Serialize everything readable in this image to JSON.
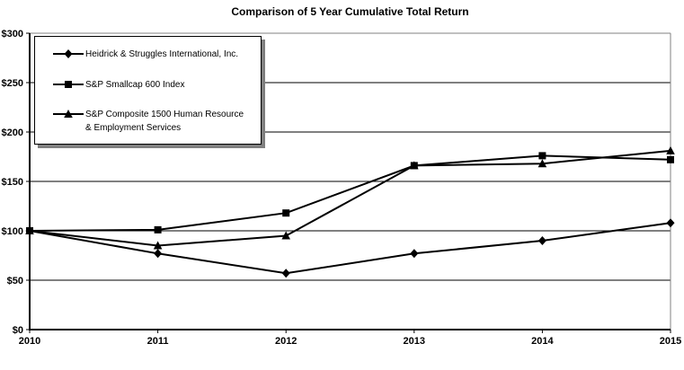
{
  "chart_data": {
    "type": "line",
    "title": "Comparison of 5 Year Cumulative Total Return",
    "xlabel": "",
    "ylabel": "",
    "x": [
      "2010",
      "2011",
      "2012",
      "2013",
      "2014",
      "2015"
    ],
    "ylim": [
      0,
      300
    ],
    "yticks": [
      {
        "label": "$0",
        "value": 0
      },
      {
        "label": "$50",
        "value": 50
      },
      {
        "label": "$100",
        "value": 100
      },
      {
        "label": "$150",
        "value": 150
      },
      {
        "label": "$200",
        "value": 200
      },
      {
        "label": "$250",
        "value": 250
      },
      {
        "label": "$300",
        "value": 300
      }
    ],
    "grid": "horizontal",
    "legend_position": "top-left-inside",
    "series": [
      {
        "key": "hsii",
        "name": "Heidrick & Struggles International, Inc.",
        "marker": "diamond",
        "color": "#000000",
        "values": [
          100,
          77,
          57,
          77,
          90,
          108
        ]
      },
      {
        "key": "sp600",
        "name": "S&P Smallcap 600 Index",
        "marker": "square",
        "color": "#000000",
        "values": [
          100,
          101,
          118,
          166,
          176,
          172
        ]
      },
      {
        "key": "sp1500hr",
        "name": "S&P Composite 1500 Human Resource & Employment Services",
        "marker": "triangle",
        "color": "#000000",
        "values": [
          100,
          85,
          95,
          166,
          168,
          181
        ]
      }
    ]
  },
  "colors": {
    "line": "#000000",
    "gridline": "#000000",
    "plot_border": "#808080",
    "background": "#ffffff",
    "legend_shadow": "#808080"
  }
}
